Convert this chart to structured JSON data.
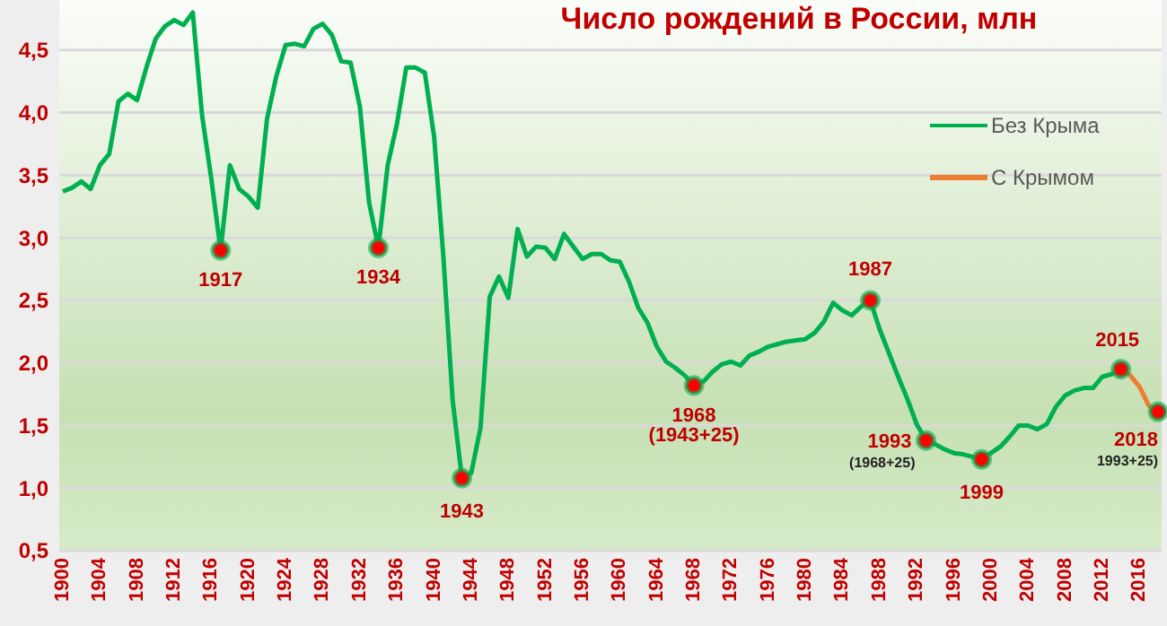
{
  "chart_data": {
    "type": "line",
    "title": "Число рождений в России, млн",
    "x": [
      1900,
      1901,
      1902,
      1903,
      1904,
      1905,
      1906,
      1907,
      1908,
      1909,
      1910,
      1911,
      1912,
      1913,
      1914,
      1915,
      1916,
      1917,
      1918,
      1919,
      1920,
      1921,
      1922,
      1923,
      1924,
      1925,
      1926,
      1927,
      1928,
      1929,
      1930,
      1931,
      1932,
      1933,
      1934,
      1935,
      1936,
      1937,
      1938,
      1939,
      1940,
      1941,
      1942,
      1943,
      1944,
      1945,
      1946,
      1947,
      1948,
      1949,
      1950,
      1951,
      1952,
      1953,
      1954,
      1955,
      1956,
      1957,
      1958,
      1959,
      1960,
      1961,
      1962,
      1963,
      1964,
      1965,
      1966,
      1967,
      1968,
      1969,
      1970,
      1971,
      1972,
      1973,
      1974,
      1975,
      1976,
      1977,
      1978,
      1979,
      1980,
      1981,
      1982,
      1983,
      1984,
      1985,
      1986,
      1987,
      1988,
      1989,
      1990,
      1991,
      1992,
      1993,
      1994,
      1995,
      1996,
      1997,
      1998,
      1999,
      2000,
      2001,
      2002,
      2003,
      2004,
      2005,
      2006,
      2007,
      2008,
      2009,
      2010,
      2011,
      2012,
      2013,
      2014
    ],
    "series": [
      {
        "name": "Без Крыма",
        "color": "#00b050",
        "values": [
          3.37,
          3.4,
          3.45,
          3.39,
          3.58,
          3.67,
          4.09,
          4.15,
          4.1,
          4.36,
          4.59,
          4.69,
          4.74,
          4.7,
          4.8,
          3.98,
          3.47,
          2.9,
          3.58,
          3.39,
          3.33,
          3.24,
          3.95,
          4.29,
          4.54,
          4.55,
          4.53,
          4.67,
          4.71,
          4.62,
          4.41,
          4.4,
          4.05,
          3.28,
          2.92,
          3.58,
          3.91,
          4.36,
          4.36,
          4.32,
          3.81,
          2.85,
          1.7,
          1.08,
          1.12,
          1.48,
          2.53,
          2.69,
          2.52,
          3.07,
          2.85,
          2.93,
          2.92,
          2.83,
          3.03,
          2.93,
          2.83,
          2.87,
          2.87,
          2.82,
          2.81,
          2.65,
          2.44,
          2.32,
          2.13,
          2.01,
          1.96,
          1.9,
          1.82,
          1.85,
          1.93,
          1.99,
          2.01,
          1.98,
          2.06,
          2.09,
          2.13,
          2.15,
          2.17,
          2.18,
          2.19,
          2.24,
          2.33,
          2.48,
          2.42,
          2.38,
          2.45,
          2.5,
          2.27,
          2.08,
          1.89,
          1.71,
          1.51,
          1.38,
          1.35,
          1.31,
          1.28,
          1.27,
          1.25,
          1.23,
          1.28,
          1.33,
          1.41,
          1.5,
          1.5,
          1.47,
          1.51,
          1.65,
          1.74,
          1.78,
          1.8,
          1.8,
          1.89,
          1.91,
          1.95
        ]
      },
      {
        "name": "С Крымом",
        "color": "#ed7d31",
        "x": [
          2014,
          2015,
          2016,
          2017,
          2018
        ],
        "values": [
          1.95,
          1.9,
          1.81,
          1.66,
          1.61
        ]
      },
      {
        "type": "scatter",
        "color": "#ff0000",
        "x": [
          1917,
          1934,
          1943,
          1968,
          1987,
          1993,
          1999,
          2014,
          2018
        ],
        "values": [
          2.9,
          2.92,
          1.08,
          1.82,
          2.5,
          1.38,
          1.23,
          1.95,
          1.61
        ]
      }
    ],
    "xlim": [
      1900,
      2018
    ],
    "xticks": [
      1900,
      1904,
      1908,
      1912,
      1916,
      1920,
      1924,
      1928,
      1932,
      1936,
      1940,
      1944,
      1948,
      1952,
      1956,
      1960,
      1964,
      1968,
      1972,
      1976,
      1980,
      1984,
      1988,
      1992,
      1996,
      2000,
      2004,
      2008,
      2012,
      2016
    ],
    "ylim": [
      0.5,
      4.9
    ],
    "yticks": [
      {
        "value": 0.5,
        "label": "0,5"
      },
      {
        "value": 1.0,
        "label": "1,0"
      },
      {
        "value": 1.5,
        "label": "1,5"
      },
      {
        "value": 2.0,
        "label": "2,0"
      },
      {
        "value": 2.5,
        "label": "2,5"
      },
      {
        "value": 3.0,
        "label": "3,0"
      },
      {
        "value": 3.5,
        "label": "3,5"
      },
      {
        "value": 4.0,
        "label": "4,0"
      },
      {
        "value": 4.5,
        "label": "4,5"
      }
    ],
    "grid": "y",
    "legend": "top right",
    "line_style": "solid",
    "annotations": [
      {
        "text": "1917",
        "x": 1917,
        "y": 2.9
      },
      {
        "text": "1934",
        "x": 1934,
        "y": 2.92
      },
      {
        "text": "1943",
        "x": 1943,
        "y": 1.08
      },
      {
        "text": "1968",
        "x": 1968,
        "y": 1.82
      },
      {
        "text": "(1943+25)",
        "x": 1968,
        "y": 1.82
      },
      {
        "text": "1987",
        "x": 1987,
        "y": 2.5
      },
      {
        "text": "1993",
        "x": 1993,
        "y": 1.38
      },
      {
        "text": "(1968+25)",
        "x": 1993,
        "y": 1.38
      },
      {
        "text": "1999",
        "x": 1999,
        "y": 1.23
      },
      {
        "text": "2015",
        "x": 2014,
        "y": 1.95
      },
      {
        "text": "2018",
        "x": 2018,
        "y": 1.61
      },
      {
        "text": "1993+25)",
        "x": 2018,
        "y": 1.61
      }
    ]
  }
}
